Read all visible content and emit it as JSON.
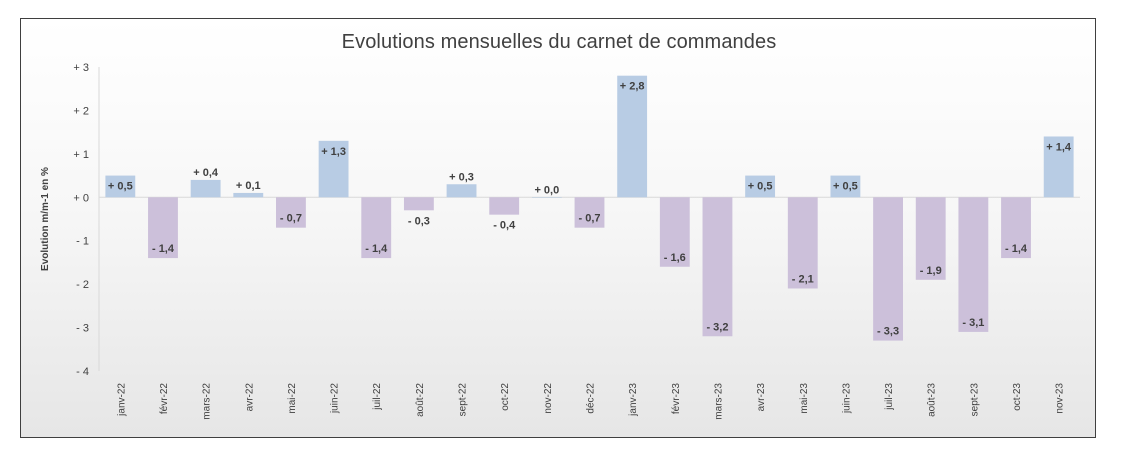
{
  "chart_data": {
    "type": "bar",
    "title": "Evolutions mensuelles du carnet de commandes",
    "ylabel": "Evolution m/m-1 en %",
    "xlabel": "",
    "ylim": [
      -4,
      3
    ],
    "yticks": [
      3,
      2,
      1,
      0,
      -1,
      -2,
      -3,
      -4
    ],
    "ytick_labels": [
      "+ 3",
      "+ 2",
      "+ 1",
      "+ 0",
      "- 1",
      "- 2",
      "- 3",
      "- 4"
    ],
    "grid": false,
    "legend": "none",
    "colors": {
      "positive": "#b8cce4",
      "negative": "#ccc0da"
    },
    "categories": [
      "janv-22",
      "févr-22",
      "mars-22",
      "avr-22",
      "mai-22",
      "juin-22",
      "juil-22",
      "août-22",
      "sept-22",
      "oct-22",
      "nov-22",
      "déc-22",
      "janv-23",
      "févr-23",
      "mars-23",
      "avr-23",
      "mai-23",
      "juin-23",
      "juil-23",
      "août-23",
      "sept-23",
      "oct-23",
      "nov-23"
    ],
    "values": [
      0.5,
      -1.4,
      0.4,
      0.1,
      -0.7,
      1.3,
      -1.4,
      -0.3,
      0.3,
      -0.4,
      0.0,
      -0.7,
      2.8,
      -1.6,
      -3.2,
      0.5,
      -2.1,
      0.5,
      -3.3,
      -1.9,
      -3.1,
      -1.4,
      1.4
    ],
    "data_labels": [
      "+ 0,5",
      "- 1,4",
      "+ 0,4",
      "+ 0,1",
      "- 0,7",
      "+ 1,3",
      "- 1,4",
      "- 0,3",
      "+ 0,3",
      "- 0,4",
      "+ 0,0",
      "- 0,7",
      "+ 2,8",
      "- 1,6",
      "- 3,2",
      "+ 0,5",
      "- 2,1",
      "+ 0,5",
      "- 3,3",
      "- 1,9",
      "- 3,1",
      "- 1,4",
      "+ 1,4"
    ]
  }
}
